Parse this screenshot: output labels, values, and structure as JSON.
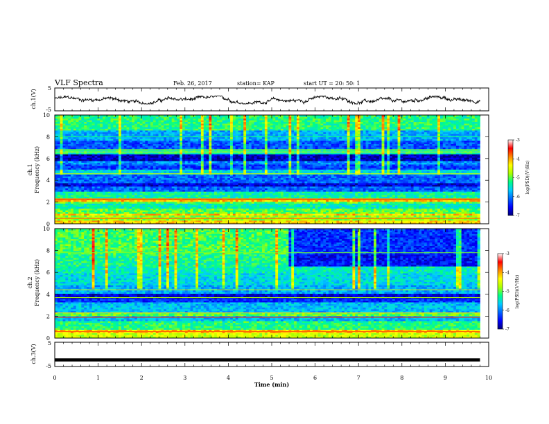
{
  "header": {
    "title": "VLF Spectra",
    "date": "Feb. 26, 2017",
    "station": "station= KAP",
    "start_time": "start  UT =   20: 50: 1"
  },
  "colors": {
    "spectrogram_scale": [
      "#00007a",
      "#0000ff",
      "#0066ff",
      "#00ccff",
      "#00ff88",
      "#aaff00",
      "#ffff00",
      "#ff8800",
      "#ff0000",
      "#ffffff"
    ],
    "trace": "#000000"
  },
  "chart_data": [
    {
      "type": "line",
      "name": "ch1-waveform",
      "ylabel": "ch.1(V)",
      "yticks": [
        "5",
        "-5"
      ],
      "ylim": [
        -5,
        5
      ],
      "x_range": [
        0,
        9.8
      ],
      "approx_band": [
        -2,
        1.5
      ]
    },
    {
      "type": "heatmap",
      "name": "ch1-spectrogram",
      "ylabel_channel": "ch.1",
      "ylabel": "Frequency (kHz)",
      "yticks": [
        "0",
        "2",
        "4",
        "6",
        "8",
        "10"
      ],
      "ylim": [
        0,
        10
      ],
      "x_range": [
        0,
        9.8
      ],
      "colorbar": {
        "label": "log(PSD)(V²/Hz)",
        "ticks": [
          "-3",
          "-4",
          "-5",
          "-6",
          "-7"
        ],
        "range": [
          -7,
          -3
        ]
      },
      "bands_khz": [
        {
          "from": 0,
          "to": 0.3,
          "level": 0.7
        },
        {
          "from": 0.3,
          "to": 0.8,
          "level": 0.55
        },
        {
          "from": 0.8,
          "to": 1.0,
          "level": 0.72
        },
        {
          "from": 1.0,
          "to": 1.4,
          "level": 0.5
        },
        {
          "from": 1.4,
          "to": 1.8,
          "level": 0.4
        },
        {
          "from": 1.8,
          "to": 2.1,
          "level": 0.5
        },
        {
          "from": 2.1,
          "to": 2.4,
          "level": 0.72
        },
        {
          "from": 2.4,
          "to": 3.0,
          "level": 0.42
        },
        {
          "from": 3.0,
          "to": 3.5,
          "level": 0.22
        },
        {
          "from": 3.5,
          "to": 3.8,
          "level": 0.08
        },
        {
          "from": 3.8,
          "to": 4.5,
          "level": 0.22
        },
        {
          "from": 4.5,
          "to": 5.0,
          "level": 0.35
        },
        {
          "from": 5.0,
          "to": 5.4,
          "level": 0.18
        },
        {
          "from": 5.4,
          "to": 5.8,
          "level": 0.26
        },
        {
          "from": 5.8,
          "to": 6.4,
          "level": 0.06
        },
        {
          "from": 6.4,
          "to": 6.8,
          "level": 0.42
        },
        {
          "from": 6.8,
          "to": 7.6,
          "level": 0.2
        },
        {
          "from": 7.6,
          "to": 8.6,
          "level": 0.3
        },
        {
          "from": 8.6,
          "to": 10.0,
          "level": 0.45
        }
      ],
      "lines_khz": [
        {
          "f": 0.5,
          "level": 0.8
        },
        {
          "f": 2.2,
          "level": 0.85
        },
        {
          "f": 2.3,
          "level": 0.78
        },
        {
          "f": 4.6,
          "level": 0.6
        },
        {
          "f": 6.6,
          "level": 0.62
        },
        {
          "f": 6.8,
          "level": 0.55
        },
        {
          "f": 8.0,
          "level": 0.45
        }
      ],
      "segments": [
        {
          "t_from": 0,
          "t_to": 9.8,
          "upper_level_shift": 0.0
        }
      ]
    },
    {
      "type": "heatmap",
      "name": "ch2-spectrogram",
      "ylabel_channel": "ch.2",
      "ylabel": "Frequency (kHz)",
      "yticks": [
        "0",
        "2",
        "4",
        "6",
        "8",
        "10"
      ],
      "ylim": [
        0,
        10
      ],
      "x_range": [
        0,
        9.8
      ],
      "colorbar": {
        "label": "log(PSD)(V²/Hz)",
        "ticks": [
          "-3",
          "-4",
          "-5",
          "-6",
          "-7"
        ],
        "range": [
          -7,
          -3
        ]
      },
      "bands_khz": [
        {
          "from": 0,
          "to": 0.4,
          "level": 0.6
        },
        {
          "from": 0.4,
          "to": 0.8,
          "level": 0.72
        },
        {
          "from": 0.8,
          "to": 1.6,
          "level": 0.45
        },
        {
          "from": 1.6,
          "to": 2.0,
          "level": 0.32
        },
        {
          "from": 2.0,
          "to": 2.4,
          "level": 0.5
        },
        {
          "from": 2.4,
          "to": 3.3,
          "level": 0.32
        },
        {
          "from": 3.3,
          "to": 3.6,
          "level": 0.16
        },
        {
          "from": 3.6,
          "to": 4.0,
          "level": 0.08
        },
        {
          "from": 4.0,
          "to": 4.8,
          "level": 0.3
        },
        {
          "from": 4.8,
          "to": 6.0,
          "level": 0.36
        },
        {
          "from": 6.0,
          "to": 6.6,
          "level": 0.4
        },
        {
          "from": 6.6,
          "to": 7.6,
          "level": 0.44
        },
        {
          "from": 7.6,
          "to": 10.0,
          "level": 0.48
        }
      ],
      "lines_khz": [
        {
          "f": 0.6,
          "level": 0.8
        },
        {
          "f": 1.9,
          "level": 0.86
        },
        {
          "f": 2.3,
          "level": 0.7
        },
        {
          "f": 3.7,
          "level": 0.55
        },
        {
          "f": 4.4,
          "level": 0.6
        },
        {
          "f": 7.8,
          "level": 0.52
        }
      ],
      "segments": [
        {
          "t_from": 0,
          "t_to": 5.4,
          "upper_level_shift": 0.0
        },
        {
          "t_from": 5.4,
          "t_to": 9.8,
          "upper_level_shift": -0.32,
          "upper_from_khz": 6.5
        }
      ]
    },
    {
      "type": "line",
      "name": "ch3-waveform",
      "ylabel": "ch.3(V)",
      "yticks": [
        "5",
        "-5"
      ],
      "ylim": [
        -5,
        5
      ],
      "x_range": [
        0,
        9.8
      ],
      "value": -2.3
    }
  ],
  "xaxis": {
    "label": "Time  (min)",
    "ticks": [
      "0",
      "1",
      "2",
      "3",
      "4",
      "5",
      "6",
      "7",
      "8",
      "9",
      "10"
    ],
    "xlim": [
      0,
      10
    ]
  }
}
